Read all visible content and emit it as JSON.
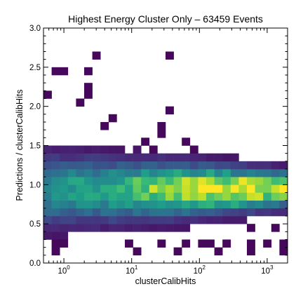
{
  "chart_data": {
    "type": "heatmap",
    "title": "Highest Energy Cluster Only – 63459 Events",
    "xlabel": "clusterCalibHits",
    "ylabel": "Predictions / clusterCalibHits",
    "x_scale": "log",
    "xlim": [
      0.5,
      2000
    ],
    "ylim": [
      0,
      3.0
    ],
    "grid": false,
    "colormap": "viridis",
    "x_ticks": [
      {
        "value": 1,
        "base": "10",
        "exp": "0"
      },
      {
        "value": 10,
        "base": "10",
        "exp": "1"
      },
      {
        "value": 100,
        "base": "10",
        "exp": "2"
      },
      {
        "value": 1000,
        "base": "10",
        "exp": "3"
      }
    ],
    "y_ticks": [
      {
        "value": 0.0,
        "label": "0.0"
      },
      {
        "value": 0.5,
        "label": "0.5"
      },
      {
        "value": 1.0,
        "label": "1.0"
      },
      {
        "value": 1.5,
        "label": "1.5"
      },
      {
        "value": 2.0,
        "label": "2.0"
      },
      {
        "value": 2.5,
        "label": "2.5"
      },
      {
        "value": 3.0,
        "label": "3.0"
      }
    ],
    "x_bin_count": 30,
    "y_bin_count": 30,
    "y_bin_width": 0.1,
    "density_model": {
      "ridge_center": 0.95,
      "ridge_sigma": 0.11,
      "spread_low_x": 0.32,
      "spread_high_x": 0.07,
      "peak_x": 300
    },
    "sparse_cells": [
      {
        "x": 3.2,
        "y": 2.65
      },
      {
        "x": 38,
        "y": 2.65
      },
      {
        "x": 0.75,
        "y": 2.45
      },
      {
        "x": 0.9,
        "y": 2.45
      },
      {
        "x": 2.2,
        "y": 2.45
      },
      {
        "x": 0.55,
        "y": 2.15
      },
      {
        "x": 2.2,
        "y": 2.25
      },
      {
        "x": 2.0,
        "y": 2.15
      },
      {
        "x": 1.8,
        "y": 2.05
      },
      {
        "x": 38,
        "y": 1.95
      },
      {
        "x": 5.5,
        "y": 1.85
      },
      {
        "x": 4.0,
        "y": 1.75
      },
      {
        "x": 30,
        "y": 1.75
      },
      {
        "x": 30,
        "y": 1.65
      },
      {
        "x": 15,
        "y": 1.55
      },
      {
        "x": 22,
        "y": 1.45
      },
      {
        "x": 60,
        "y": 1.55
      },
      {
        "x": 75,
        "y": 1.45
      },
      {
        "x": 160,
        "y": 1.35
      },
      {
        "x": 420,
        "y": 1.15
      },
      {
        "x": 520,
        "y": 1.15
      },
      {
        "x": 1100,
        "y": 1.15
      },
      {
        "x": 1400,
        "y": 1.15
      },
      {
        "x": 6.0,
        "y": 0.55
      },
      {
        "x": 8.5,
        "y": 0.65
      },
      {
        "x": 30,
        "y": 0.75
      },
      {
        "x": 50,
        "y": 0.75
      },
      {
        "x": 130,
        "y": 0.65
      },
      {
        "x": 190,
        "y": 0.75
      },
      {
        "x": 250,
        "y": 0.65
      },
      {
        "x": 450,
        "y": 0.75
      },
      {
        "x": 1100,
        "y": 0.65
      },
      {
        "x": 1300,
        "y": 0.75
      },
      {
        "x": 0.8,
        "y": 0.25
      },
      {
        "x": 0.95,
        "y": 0.25
      },
      {
        "x": 0.85,
        "y": 0.15
      },
      {
        "x": 9,
        "y": 0.25
      },
      {
        "x": 12,
        "y": 0.15
      },
      {
        "x": 25,
        "y": 0.25
      },
      {
        "x": 45,
        "y": 0.15
      },
      {
        "x": 55,
        "y": 0.25
      },
      {
        "x": 100,
        "y": 0.25
      },
      {
        "x": 130,
        "y": 0.25
      },
      {
        "x": 180,
        "y": 0.15
      },
      {
        "x": 250,
        "y": 0.25
      },
      {
        "x": 550,
        "y": 0.25
      },
      {
        "x": 650,
        "y": 0.15
      },
      {
        "x": 900,
        "y": 0.25
      },
      {
        "x": 1300,
        "y": 0.45
      },
      {
        "x": 1600,
        "y": 0.15
      },
      {
        "x": 1800,
        "y": 0.25
      },
      {
        "x": 600,
        "y": 0.45
      }
    ]
  }
}
